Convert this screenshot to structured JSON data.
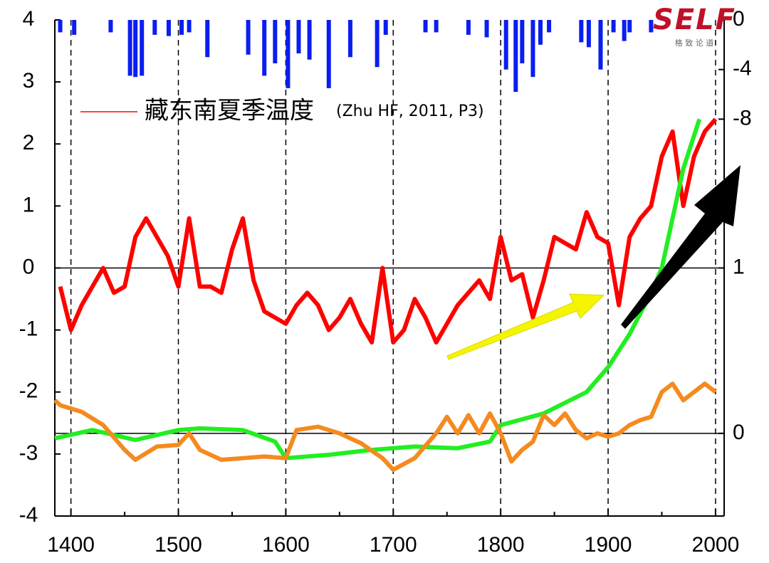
{
  "chart_data": {
    "type": "line",
    "xlim": [
      1385,
      2008
    ],
    "xticks": [
      1400,
      1500,
      1600,
      1700,
      1800,
      1900,
      2000
    ],
    "xminorticks": [
      1450,
      1550,
      1650,
      1750,
      1850,
      1950
    ],
    "ylim": [
      -4,
      4
    ],
    "yticks": [
      -4,
      -3,
      -2,
      -1,
      0,
      1,
      2,
      3,
      4
    ],
    "y2lim": [
      -0.5,
      2.5
    ],
    "y2ticks": [
      0,
      1
    ],
    "y3lim": [
      -40,
      0
    ],
    "y3ticks": [
      0,
      -4,
      -8
    ],
    "grid": true,
    "reference_lines": [
      {
        "axis": "y",
        "value": 0
      },
      {
        "axis": "y2",
        "value": 0
      }
    ],
    "legend_note": "(Zhu HF, 2011, P3)",
    "logo_text": "SELF",
    "logo_subtitle": "格 致 论 道",
    "series": [
      {
        "name": "藏东南夏季温度",
        "color": "#ff0000",
        "x": [
          1390,
          1400,
          1410,
          1420,
          1430,
          1440,
          1450,
          1460,
          1470,
          1480,
          1490,
          1500,
          1510,
          1520,
          1530,
          1540,
          1550,
          1560,
          1570,
          1580,
          1590,
          1600,
          1610,
          1620,
          1630,
          1640,
          1650,
          1660,
          1670,
          1680,
          1690,
          1700,
          1710,
          1720,
          1730,
          1740,
          1750,
          1760,
          1770,
          1780,
          1790,
          1800,
          1810,
          1820,
          1830,
          1840,
          1850,
          1860,
          1870,
          1880,
          1890,
          1900,
          1910,
          1920,
          1930,
          1940,
          1950,
          1960,
          1970,
          1980,
          1990,
          2000
        ],
        "values": [
          -0.3,
          -1.0,
          -0.6,
          -0.3,
          0.0,
          -0.4,
          -0.3,
          0.5,
          0.8,
          0.5,
          0.2,
          -0.3,
          0.8,
          -0.3,
          -0.3,
          -0.4,
          0.3,
          0.8,
          -0.2,
          -0.7,
          -0.8,
          -0.9,
          -0.6,
          -0.4,
          -0.6,
          -1.0,
          -0.8,
          -0.5,
          -0.9,
          -1.2,
          0.0,
          -1.2,
          -1.0,
          -0.5,
          -0.8,
          -1.2,
          -0.9,
          -0.6,
          -0.4,
          -0.2,
          -0.5,
          0.5,
          -0.2,
          -0.1,
          -0.8,
          -0.2,
          0.5,
          0.4,
          0.3,
          0.9,
          0.5,
          0.4,
          -0.6,
          0.5,
          0.8,
          1.0,
          1.8,
          2.2,
          1.0,
          1.8,
          2.2,
          2.4
        ]
      },
      {
        "color": "#22ee22",
        "axis": "y2",
        "x": [
          1385,
          1420,
          1460,
          1500,
          1520,
          1560,
          1590,
          1600,
          1640,
          1680,
          1720,
          1760,
          1790,
          1800,
          1840,
          1880,
          1900,
          1920,
          1940,
          1950,
          1960,
          1970,
          1985
        ],
        "values": [
          -0.03,
          0.02,
          -0.04,
          0.02,
          0.03,
          0.02,
          -0.05,
          -0.15,
          -0.13,
          -0.1,
          -0.08,
          -0.09,
          -0.05,
          0.05,
          0.12,
          0.25,
          0.4,
          0.6,
          0.85,
          1.0,
          1.3,
          1.6,
          1.9
        ]
      },
      {
        "color": "#f58a1f",
        "axis": "y2",
        "x": [
          1385,
          1390,
          1410,
          1430,
          1450,
          1460,
          1480,
          1500,
          1510,
          1520,
          1540,
          1560,
          1580,
          1600,
          1610,
          1630,
          1650,
          1670,
          1690,
          1700,
          1720,
          1740,
          1750,
          1760,
          1770,
          1780,
          1790,
          1800,
          1810,
          1820,
          1830,
          1840,
          1850,
          1860,
          1870,
          1880,
          1890,
          1900,
          1910,
          1920,
          1930,
          1940,
          1950,
          1960,
          1970,
          1980,
          1990,
          2000
        ],
        "values": [
          0.2,
          0.17,
          0.13,
          0.05,
          -0.1,
          -0.16,
          -0.08,
          -0.07,
          0.0,
          -0.1,
          -0.16,
          -0.15,
          -0.14,
          -0.15,
          0.02,
          0.04,
          0.0,
          -0.06,
          -0.15,
          -0.22,
          -0.15,
          0.0,
          0.1,
          0.0,
          0.11,
          0.0,
          0.12,
          0.0,
          -0.17,
          -0.1,
          -0.05,
          0.11,
          0.05,
          0.12,
          0.02,
          -0.03,
          0.0,
          -0.02,
          0.0,
          0.05,
          0.08,
          0.1,
          0.25,
          0.3,
          0.2,
          0.25,
          0.3,
          0.25
        ]
      },
      {
        "type": "bar",
        "color": "#0a1ef0",
        "axis": "y3",
        "x": [
          1390,
          1403,
          1437,
          1455,
          1460,
          1466,
          1478,
          1491,
          1503,
          1510,
          1527,
          1565,
          1580,
          1590,
          1602,
          1612,
          1622,
          1640,
          1660,
          1685,
          1693,
          1730,
          1740,
          1770,
          1787,
          1805,
          1814,
          1820,
          1830,
          1837,
          1845,
          1875,
          1882,
          1893,
          1905,
          1915,
          1920,
          1940
        ],
        "values": [
          -1,
          -1.2,
          -1,
          -4.5,
          -4.6,
          -4.5,
          -1.2,
          -1.3,
          -1.2,
          -1,
          -3,
          -2.8,
          -4.5,
          -3.5,
          -5.5,
          -2.7,
          -3.2,
          -5.5,
          -3,
          -3.8,
          -1.2,
          -1,
          -1,
          -1.2,
          -1.4,
          -4,
          -5.8,
          -3.5,
          -4.6,
          -2,
          -1,
          -1.8,
          -2.2,
          -4,
          -1,
          -1.7,
          -1,
          -1
        ]
      }
    ]
  }
}
